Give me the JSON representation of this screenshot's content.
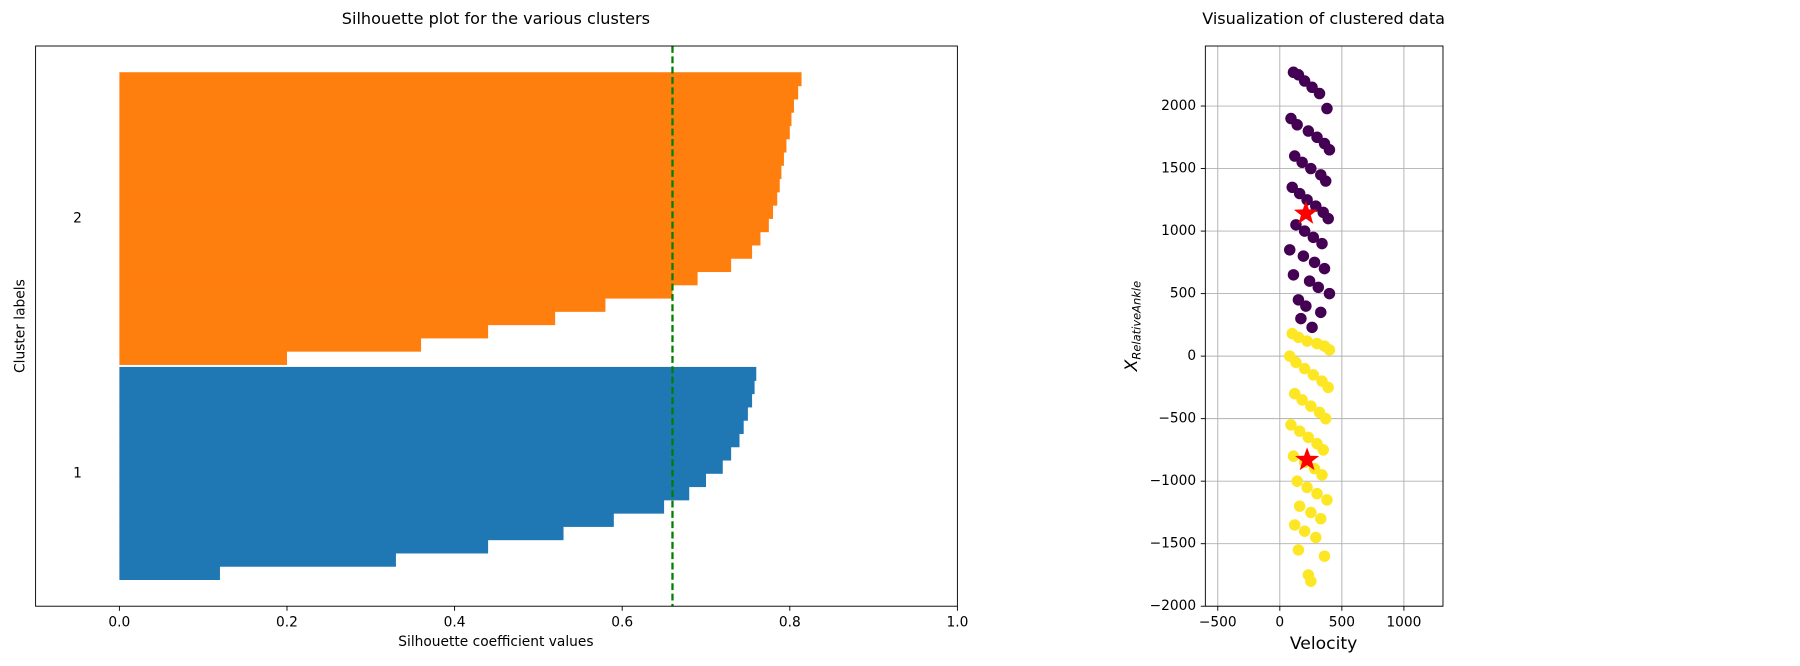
{
  "chart_data": [
    {
      "type": "silhouette",
      "title": "Silhouette plot for the various clusters",
      "xlabel": "Silhouette coefficient values",
      "ylabel": "Cluster labels",
      "xlim": [
        -0.1,
        1.0
      ],
      "xticks": [
        {
          "value": 0,
          "label": "0.0"
        },
        {
          "value": 0.2,
          "label": "0.2"
        },
        {
          "value": 0.4,
          "label": "0.4"
        },
        {
          "value": 0.6,
          "label": "0.6"
        },
        {
          "value": 0.8,
          "label": "0.8"
        },
        {
          "value": 1.0,
          "label": "1.0"
        }
      ],
      "ylim": [
        0,
        42.2
      ],
      "average": 0.66,
      "average_color": "#008000",
      "series": [
        {
          "name": "1",
          "color": "#1f77b4",
          "values": [
            0.12,
            0.33,
            0.44,
            0.53,
            0.59,
            0.65,
            0.68,
            0.7,
            0.72,
            0.73,
            0.74,
            0.745,
            0.75,
            0.755,
            0.758,
            0.76
          ]
        },
        {
          "name": "2",
          "color": "#ff7f0e",
          "values": [
            0.2,
            0.36,
            0.44,
            0.52,
            0.58,
            0.66,
            0.69,
            0.73,
            0.755,
            0.765,
            0.775,
            0.78,
            0.785,
            0.788,
            0.79,
            0.793,
            0.796,
            0.8,
            0.802,
            0.805,
            0.81,
            0.814
          ]
        }
      ]
    },
    {
      "type": "scatter",
      "title": "Visualization of clustered data",
      "xlabel": "Velocity",
      "ylabel": {
        "base": "X",
        "sub": "RelativeAnkle"
      },
      "xlim": [
        -600,
        1315
      ],
      "ylim": [
        -2000,
        2480
      ],
      "grid": true,
      "xticks": [
        {
          "value": -500,
          "label": "−500"
        },
        0,
        500,
        1000
      ],
      "yticks": [
        {
          "value": -2000,
          "label": "−2000"
        },
        {
          "value": -1500,
          "label": "−1500"
        },
        {
          "value": -1000,
          "label": "−1000"
        },
        {
          "value": -500,
          "label": "−500"
        },
        0,
        500,
        1000,
        1500,
        2000
      ],
      "series": [
        {
          "color": "#440154",
          "x": [
            110,
            150,
            200,
            260,
            320,
            380,
            90,
            140,
            230,
            300,
            360,
            400,
            120,
            180,
            250,
            330,
            370,
            100,
            160,
            220,
            290,
            350,
            390,
            130,
            200,
            270,
            340,
            80,
            190,
            280,
            360,
            110,
            240,
            310,
            400,
            150,
            210,
            330,
            170,
            260
          ],
          "y": [
            2270,
            2250,
            2200,
            2150,
            2100,
            1980,
            1900,
            1850,
            1800,
            1750,
            1700,
            1650,
            1600,
            1550,
            1500,
            1450,
            1400,
            1350,
            1300,
            1250,
            1200,
            1150,
            1100,
            1050,
            1000,
            950,
            900,
            850,
            800,
            750,
            700,
            650,
            600,
            550,
            500,
            450,
            400,
            350,
            300,
            230
          ]
        },
        {
          "color": "#fde725",
          "x": [
            100,
            150,
            220,
            300,
            360,
            400,
            80,
            130,
            200,
            270,
            340,
            390,
            120,
            180,
            250,
            320,
            370,
            90,
            160,
            230,
            300,
            350,
            110,
            200,
            280,
            340,
            140,
            220,
            300,
            380,
            160,
            250,
            330,
            120,
            200,
            290,
            150,
            360,
            230,
            250
          ],
          "y": [
            180,
            150,
            120,
            100,
            80,
            50,
            0,
            -50,
            -100,
            -150,
            -200,
            -250,
            -300,
            -350,
            -400,
            -450,
            -500,
            -550,
            -600,
            -650,
            -700,
            -750,
            -800,
            -850,
            -900,
            -950,
            -1000,
            -1050,
            -1100,
            -1150,
            -1200,
            -1250,
            -1300,
            -1350,
            -1400,
            -1450,
            -1550,
            -1600,
            -1750,
            -1800
          ]
        }
      ],
      "centers": {
        "color": "#ff0000",
        "marker": "star",
        "x": [
          210,
          220
        ],
        "y": [
          1140,
          -830
        ]
      }
    }
  ]
}
